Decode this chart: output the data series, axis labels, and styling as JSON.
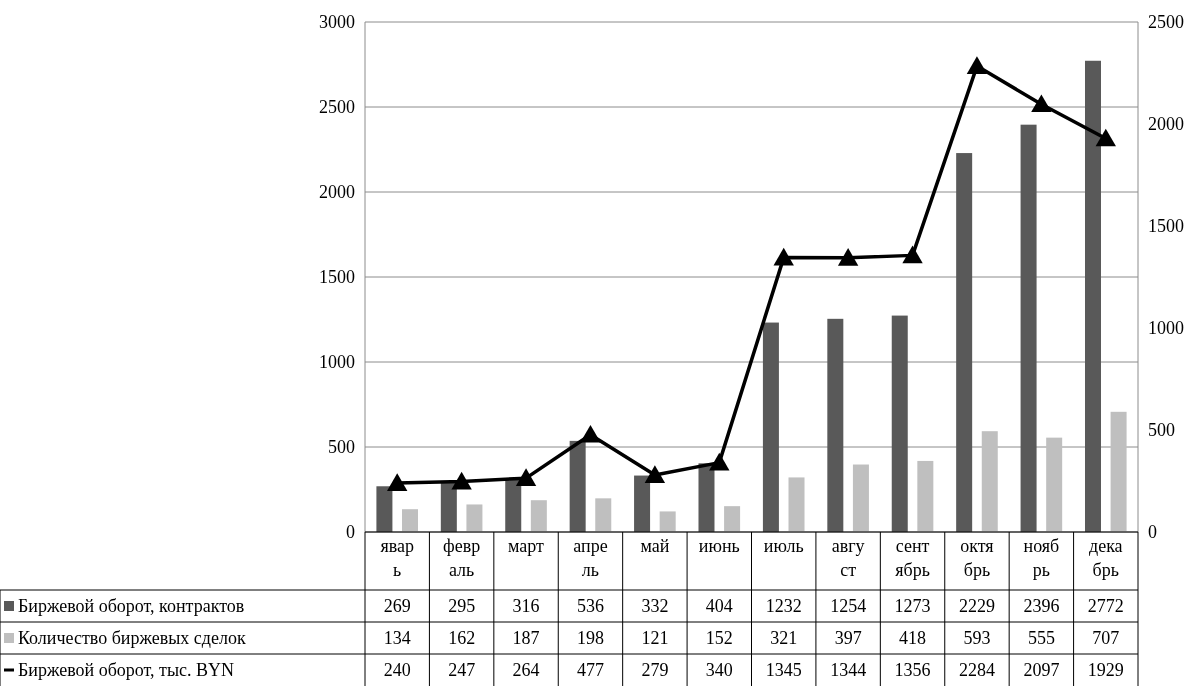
{
  "chart_data": {
    "type": "bar",
    "categories": [
      "яварь",
      "февраль",
      "март",
      "апрель",
      "май",
      "июнь",
      "июль",
      "август",
      "сентябрь",
      "октябрь",
      "ноябрь",
      "декабрь"
    ],
    "series": [
      {
        "name": "Биржевой оборот, контрактов",
        "color": "#595959",
        "values": [
          269,
          295,
          316,
          536,
          332,
          404,
          1232,
          1254,
          1273,
          2229,
          2396,
          2772
        ]
      },
      {
        "name": "Количество биржевых сделок",
        "color": "#bfbfbf",
        "values": [
          134,
          162,
          187,
          198,
          121,
          152,
          321,
          397,
          418,
          593,
          555,
          707
        ]
      },
      {
        "name": "Биржевой оборот, тыс. BYN",
        "type": "line",
        "axis": "y2",
        "color": "#000000",
        "marker": "triangle",
        "values": [
          240,
          247,
          264,
          477,
          279,
          340,
          1345,
          1344,
          1356,
          2284,
          2097,
          1929
        ]
      }
    ],
    "ylim": [
      0,
      3000
    ],
    "yticks": [
      0,
      500,
      1000,
      1500,
      2000,
      2500,
      3000
    ],
    "y2lim": [
      0,
      2500
    ],
    "y2ticks": [
      0,
      500,
      1000,
      1500,
      2000,
      2500
    ],
    "grid": "y",
    "legend": "bottom",
    "data_labels": true
  }
}
